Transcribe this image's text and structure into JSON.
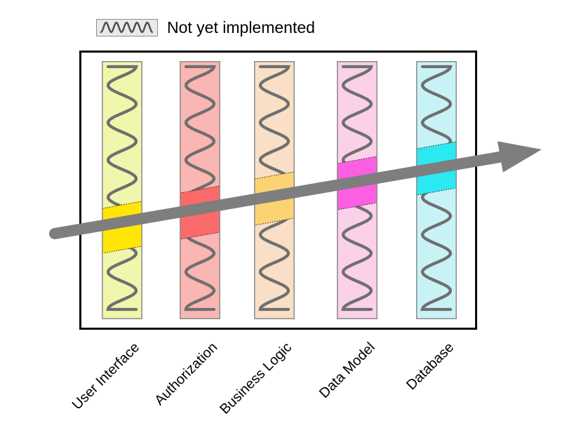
{
  "legend": {
    "label": "Not yet implemented",
    "swatch_fill": "#e9e9e9",
    "swatch_border": "#8f8f8f",
    "squiggle_color": "#4f4f4f"
  },
  "colors": {
    "wave": "#6f6f6f",
    "arrow": "#7e7e7e",
    "frame_border": "#0a0a0a",
    "bar_border": "#919191",
    "slice_outline": "#1a1a1a",
    "label_text": "#000000",
    "background": "#ffffff"
  },
  "layers": [
    {
      "label": "User Interface",
      "bar_color": "#f0f6ac",
      "slice_color": "#ffe606"
    },
    {
      "label": "Authorization",
      "bar_color": "#f9b6b2",
      "slice_color": "#fb6a6a"
    },
    {
      "label": "Business Logic",
      "bar_color": "#f9dfc5",
      "slice_color": "#fcd373"
    },
    {
      "label": "Data Model",
      "bar_color": "#fbd0e9",
      "slice_color": "#fc5fe1"
    },
    {
      "label": "Database",
      "bar_color": "#c8f3f6",
      "slice_color": "#2be9f1"
    }
  ]
}
